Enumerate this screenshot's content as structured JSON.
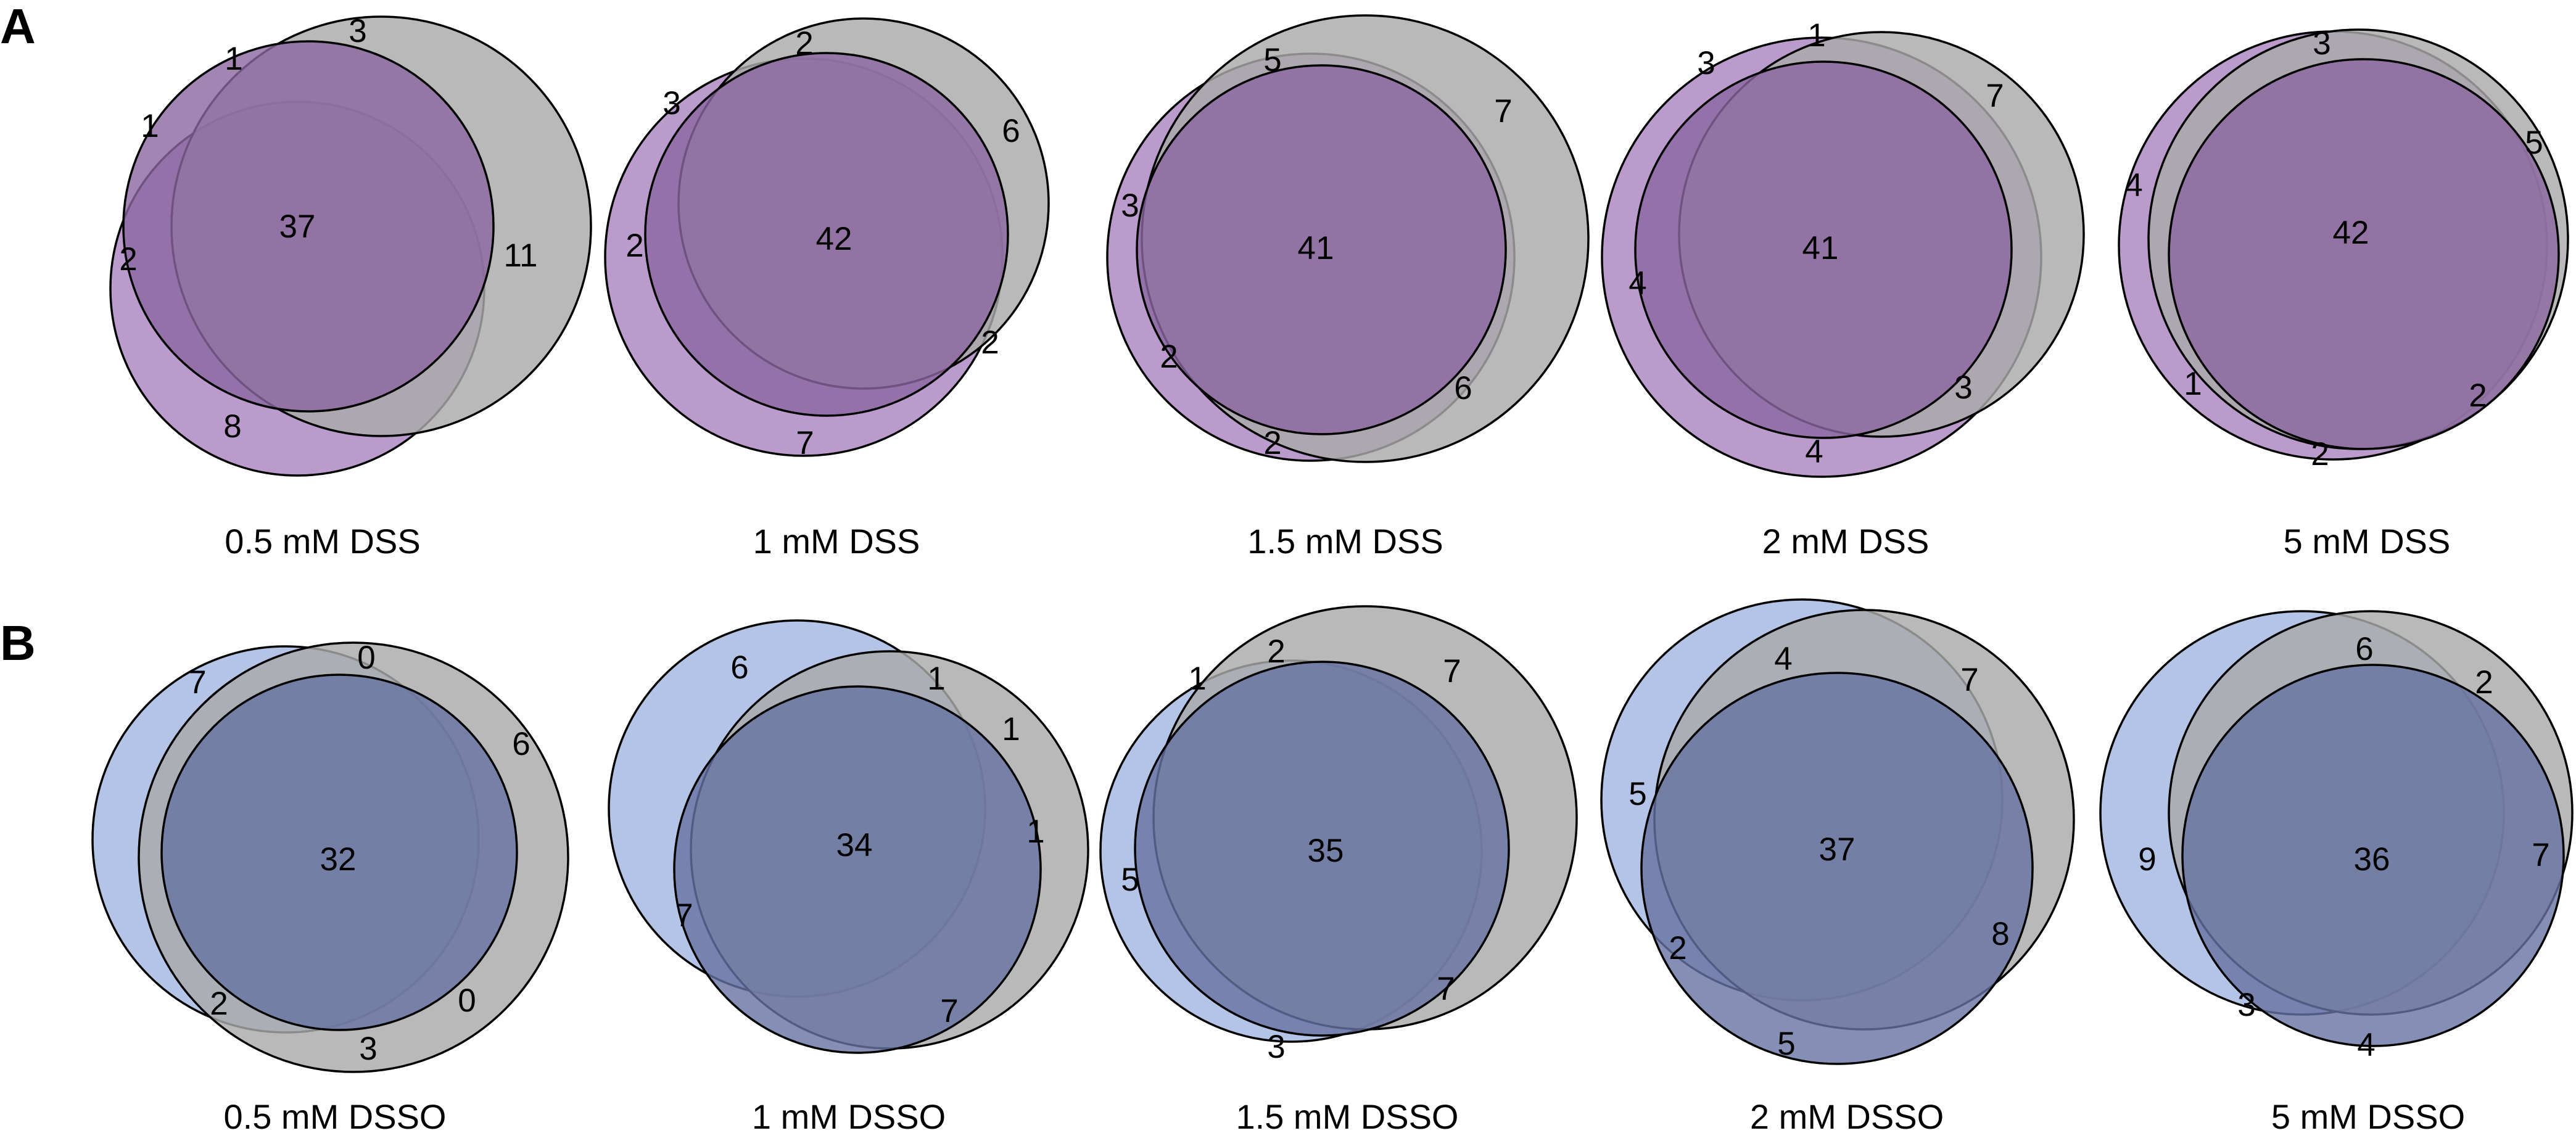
{
  "panels": [
    {
      "letter": "A",
      "colors": {
        "outer": "#bb9bcc",
        "middle": "#aaaaaa",
        "inner": "#8b67a0"
      },
      "diagrams": [
        {
          "caption": "0.5 mM DSS",
          "center": "37",
          "counts": [
            "3",
            "1",
            "1",
            "2",
            "11",
            "8"
          ]
        },
        {
          "caption": "1 mM DSS",
          "center": "42",
          "counts": [
            "2",
            "3",
            "6",
            "2",
            "2",
            "7"
          ]
        },
        {
          "caption": "1.5 mM DSS",
          "center": "41",
          "counts": [
            "5",
            "7",
            "3",
            "2",
            "6",
            "2"
          ]
        },
        {
          "caption": "2 mM DSS",
          "center": "41",
          "counts": [
            "3",
            "1",
            "7",
            "4",
            "3",
            "4"
          ]
        },
        {
          "caption": "5 mM DSS",
          "center": "42",
          "counts": [
            "3",
            "5",
            "4",
            "1",
            "2",
            "2"
          ]
        }
      ]
    },
    {
      "letter": "B",
      "colors": {
        "outer": "#b4c4e6",
        "middle": "#aaaaaa",
        "inner": "#6673a2"
      },
      "diagrams": [
        {
          "caption": "0.5 mM DSSO",
          "center": "32",
          "counts": [
            "0",
            "7",
            "6",
            "2",
            "0",
            "3"
          ]
        },
        {
          "caption": "1 mM DSSO",
          "center": "34",
          "counts": [
            "6",
            "1",
            "1",
            "1",
            "7",
            "7"
          ]
        },
        {
          "caption": "1.5 mM DSSO",
          "center": "35",
          "counts": [
            "1",
            "2",
            "7",
            "5",
            "7",
            "3"
          ]
        },
        {
          "caption": "2 mM DSSO",
          "center": "37",
          "counts": [
            "4",
            "7",
            "5",
            "2",
            "8",
            "5"
          ]
        },
        {
          "caption": "5 mM DSSO",
          "center": "36",
          "counts": [
            "6",
            "2",
            "9",
            "7",
            "3",
            "4"
          ]
        }
      ]
    }
  ]
}
